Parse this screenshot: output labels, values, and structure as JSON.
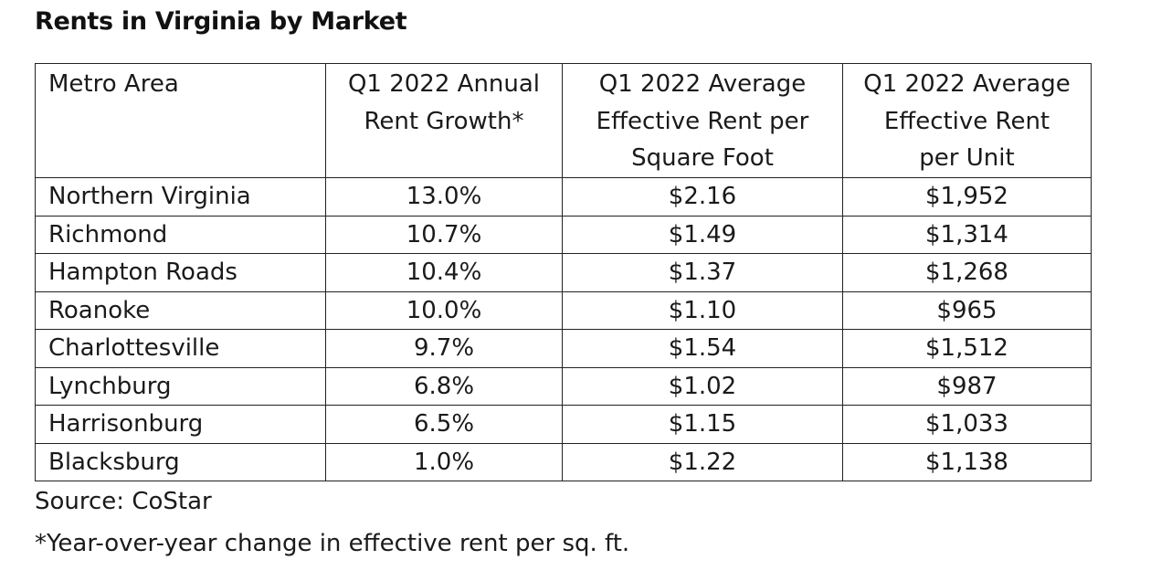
{
  "title": "Rents in Virginia by Market",
  "headers": {
    "metro": [
      "Metro Area"
    ],
    "growth": [
      "Q1 2022 Annual",
      "Rent Growth*"
    ],
    "rent_sqft": [
      "Q1 2022 Average",
      "Effective Rent per",
      "Square Foot"
    ],
    "rent_unit": [
      "Q1 2022 Average",
      "Effective Rent",
      "per Unit"
    ]
  },
  "chart_data": {
    "type": "table",
    "title": "Rents in Virginia by Market",
    "columns": [
      "Metro Area",
      "Q1 2022 Annual Rent Growth*",
      "Q1 2022 Average Effective Rent per Square Foot",
      "Q1 2022 Average Effective Rent per Unit"
    ],
    "rows": [
      {
        "metro": "Northern Virginia",
        "growth": "13.0%",
        "rent_sqft": "$2.16",
        "rent_unit": "$1,952"
      },
      {
        "metro": "Richmond",
        "growth": "10.7%",
        "rent_sqft": "$1.49",
        "rent_unit": "$1,314"
      },
      {
        "metro": "Hampton Roads",
        "growth": "10.4%",
        "rent_sqft": "$1.37",
        "rent_unit": "$1,268"
      },
      {
        "metro": "Roanoke",
        "growth": "10.0%",
        "rent_sqft": "$1.10",
        "rent_unit": "$965"
      },
      {
        "metro": "Charlottesville",
        "growth": "9.7%",
        "rent_sqft": "$1.54",
        "rent_unit": "$1,512"
      },
      {
        "metro": "Lynchburg",
        "growth": "6.8%",
        "rent_sqft": "$1.02",
        "rent_unit": "$987"
      },
      {
        "metro": "Harrisonburg",
        "growth": "6.5%",
        "rent_sqft": "$1.15",
        "rent_unit": "$1,033"
      },
      {
        "metro": "Blacksburg",
        "growth": "1.0%",
        "rent_sqft": "$1.22",
        "rent_unit": "$1,138"
      }
    ]
  },
  "source": "Source: CoStar",
  "footnote": "*Year-over-year change in effective rent per sq. ft."
}
